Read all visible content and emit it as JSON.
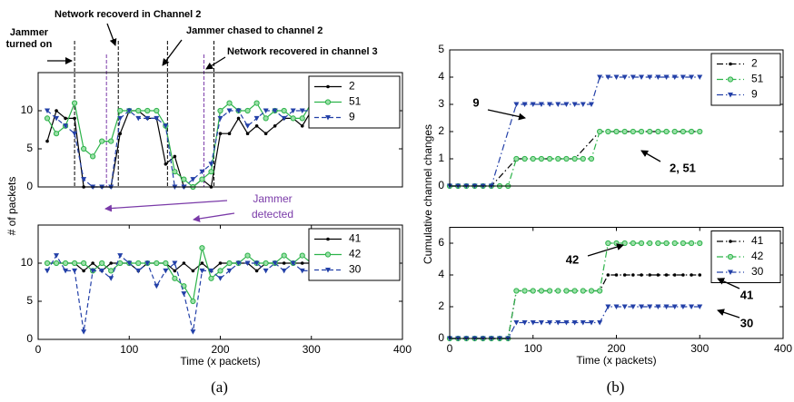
{
  "chart_data": [
    {
      "type": "line",
      "y_label": "# of packets",
      "xlim": [
        0,
        400
      ],
      "ylim": [
        0,
        15
      ],
      "yticks": [
        0,
        5,
        10
      ],
      "x": [
        10,
        20,
        30,
        40,
        50,
        60,
        70,
        80,
        90,
        100,
        110,
        120,
        130,
        140,
        150,
        160,
        170,
        180,
        190,
        200,
        210,
        220,
        230,
        240,
        250,
        260,
        270,
        280,
        290,
        300
      ],
      "series": [
        {
          "name": "2",
          "color": "#000000",
          "linestyle": "solid",
          "marker": "dot",
          "values": [
            6,
            10,
            9,
            9,
            0,
            0,
            0,
            0,
            7,
            10,
            10,
            9,
            9,
            3,
            4,
            0,
            0,
            1,
            0,
            7,
            7,
            9,
            7,
            8,
            7,
            8,
            9,
            9,
            8,
            10
          ]
        },
        {
          "name": "51",
          "color": "#2db34a",
          "linestyle": "solid",
          "marker": "circle",
          "values": [
            9,
            7,
            8,
            11,
            5,
            4,
            6,
            6,
            10,
            10,
            10,
            10,
            10,
            8,
            2,
            1,
            0,
            1,
            2,
            10,
            11,
            10,
            10,
            11,
            9,
            10,
            10,
            9,
            9,
            11
          ]
        },
        {
          "name": "9",
          "color": "#2340a8",
          "linestyle": "dashed",
          "marker": "triangle-down",
          "values": [
            10,
            9,
            8,
            7,
            1,
            0,
            0,
            0,
            9,
            10,
            9,
            9,
            9,
            8,
            0,
            0,
            1,
            2,
            3,
            9,
            10,
            10,
            8,
            9,
            10,
            10,
            9,
            10,
            10,
            10
          ]
        }
      ],
      "vlines": [
        {
          "x": 40,
          "color": "#000000"
        },
        {
          "x": 88,
          "color": "#000000"
        },
        {
          "x": 142,
          "color": "#000000"
        },
        {
          "x": 193,
          "color": "#000000"
        },
        {
          "x": 75,
          "color": "#7a3aa8"
        },
        {
          "x": 182,
          "color": "#7a3aa8"
        }
      ],
      "annotations": [
        [
          "Jammer",
          "turned on"
        ],
        [
          "Network  recoverd in Channel 2"
        ],
        [
          "Jammer chased to channel 2"
        ],
        [
          "Network recovered in channel 3"
        ],
        [
          "Jammer",
          "detected"
        ]
      ],
      "legend": "upper right"
    },
    {
      "type": "line",
      "x_label": "Time (x packets)",
      "panel_label": "(a)",
      "xlim": [
        0,
        400
      ],
      "xticks": [
        0,
        100,
        200,
        300,
        400
      ],
      "ylim": [
        0,
        15
      ],
      "yticks": [
        0,
        5,
        10
      ],
      "x": [
        10,
        20,
        30,
        40,
        50,
        60,
        70,
        80,
        90,
        100,
        110,
        120,
        130,
        140,
        150,
        160,
        170,
        180,
        190,
        200,
        210,
        220,
        230,
        240,
        250,
        260,
        270,
        280,
        290,
        300
      ],
      "series": [
        {
          "name": "41",
          "color": "#000000",
          "linestyle": "solid",
          "marker": "dot",
          "values": [
            10,
            10,
            10,
            10,
            9,
            10,
            9,
            10,
            10,
            10,
            9,
            10,
            10,
            10,
            9,
            10,
            9,
            10,
            9,
            10,
            10,
            10,
            10,
            9,
            10,
            10,
            10,
            10,
            10,
            10
          ]
        },
        {
          "name": "42",
          "color": "#2db34a",
          "linestyle": "solid",
          "marker": "circle",
          "values": [
            10,
            10,
            10,
            10,
            10,
            9,
            10,
            9,
            10,
            10,
            10,
            10,
            10,
            10,
            8,
            7,
            5,
            12,
            8,
            9,
            10,
            10,
            11,
            10,
            10,
            10,
            11,
            10,
            11,
            10
          ]
        },
        {
          "name": "30",
          "color": "#2340a8",
          "linestyle": "dashed",
          "marker": "triangle-down",
          "values": [
            9,
            11,
            9,
            9,
            1,
            9,
            9,
            8,
            11,
            10,
            9,
            10,
            7,
            9,
            10,
            6,
            1,
            9,
            9,
            8,
            9,
            10,
            10,
            10,
            9,
            10,
            9,
            10,
            9,
            9
          ]
        }
      ],
      "legend": "upper right"
    },
    {
      "type": "line",
      "y_label": "Cumulative channel changes",
      "xlim": [
        0,
        400
      ],
      "ylim": [
        0,
        5
      ],
      "yticks": [
        0,
        1,
        2,
        3,
        4,
        5
      ],
      "series": [
        {
          "name": "2",
          "color": "#000000",
          "linestyle": "dashdot",
          "marker": "dot",
          "x": [
            0,
            10,
            20,
            30,
            40,
            50,
            80,
            90,
            100,
            110,
            120,
            130,
            140,
            150,
            180,
            190,
            200,
            210,
            220,
            230,
            240,
            250,
            260,
            270,
            280,
            290,
            300
          ],
          "values": [
            0,
            0,
            0,
            0,
            0,
            0,
            1,
            1,
            1,
            1,
            1,
            1,
            1,
            1,
            2,
            2,
            2,
            2,
            2,
            2,
            2,
            2,
            2,
            2,
            2,
            2,
            2
          ]
        },
        {
          "name": "51",
          "color": "#2db34a",
          "linestyle": "dashdot",
          "marker": "circle",
          "x": [
            0,
            10,
            20,
            30,
            40,
            50,
            60,
            70,
            80,
            90,
            100,
            110,
            120,
            130,
            140,
            150,
            160,
            170,
            180,
            190,
            200,
            210,
            220,
            230,
            240,
            250,
            260,
            270,
            280,
            290,
            300
          ],
          "values": [
            0,
            0,
            0,
            0,
            0,
            0,
            0,
            0,
            1,
            1,
            1,
            1,
            1,
            1,
            1,
            1,
            1,
            1,
            2,
            2,
            2,
            2,
            2,
            2,
            2,
            2,
            2,
            2,
            2,
            2,
            2
          ]
        },
        {
          "name": "9",
          "color": "#2340a8",
          "linestyle": "dashdot",
          "marker": "triangle-down",
          "x": [
            0,
            10,
            20,
            30,
            40,
            50,
            80,
            90,
            100,
            110,
            120,
            130,
            140,
            150,
            160,
            170,
            180,
            190,
            200,
            210,
            220,
            230,
            240,
            250,
            260,
            270,
            280,
            290,
            300
          ],
          "values": [
            0,
            0,
            0,
            0,
            0,
            0,
            3,
            3,
            3,
            3,
            3,
            3,
            3,
            3,
            3,
            3,
            4,
            4,
            4,
            4,
            4,
            4,
            4,
            4,
            4,
            4,
            4,
            4,
            4
          ]
        }
      ],
      "annotations": [
        [
          "9"
        ],
        [
          "2, 51"
        ]
      ],
      "legend": "upper right"
    },
    {
      "type": "line",
      "x_label": "Time (x packets)",
      "panel_label": "(b)",
      "xlim": [
        0,
        400
      ],
      "xticks": [
        0,
        100,
        200,
        300,
        400
      ],
      "ylim": [
        0,
        7
      ],
      "yticks": [
        0,
        2,
        4,
        6
      ],
      "x": [
        0,
        10,
        20,
        30,
        40,
        50,
        60,
        70,
        80,
        90,
        100,
        110,
        120,
        130,
        140,
        150,
        160,
        170,
        180,
        190,
        200,
        210,
        220,
        230,
        240,
        250,
        260,
        270,
        280,
        290,
        300
      ],
      "series": [
        {
          "name": "41",
          "color": "#000000",
          "linestyle": "dashdot",
          "marker": "dot",
          "values": [
            0,
            0,
            0,
            0,
            0,
            0,
            0,
            0,
            3,
            3,
            3,
            3,
            3,
            3,
            3,
            3,
            3,
            3,
            3,
            4,
            4,
            4,
            4,
            4,
            4,
            4,
            4,
            4,
            4,
            4,
            4
          ]
        },
        {
          "name": "42",
          "color": "#2db34a",
          "linestyle": "dashdot",
          "marker": "circle",
          "values": [
            0,
            0,
            0,
            0,
            0,
            0,
            0,
            0,
            3,
            3,
            3,
            3,
            3,
            3,
            3,
            3,
            3,
            3,
            3,
            6,
            6,
            6,
            6,
            6,
            6,
            6,
            6,
            6,
            6,
            6,
            6
          ]
        },
        {
          "name": "30",
          "color": "#2340a8",
          "linestyle": "dashdot",
          "marker": "triangle-down",
          "values": [
            0,
            0,
            0,
            0,
            0,
            0,
            0,
            0,
            1,
            1,
            1,
            1,
            1,
            1,
            1,
            1,
            1,
            1,
            1,
            2,
            2,
            2,
            2,
            2,
            2,
            2,
            2,
            2,
            2,
            2,
            2
          ]
        }
      ],
      "annotations": [
        [
          "42"
        ],
        [
          "41"
        ],
        [
          "30"
        ]
      ],
      "legend": "upper right"
    }
  ]
}
